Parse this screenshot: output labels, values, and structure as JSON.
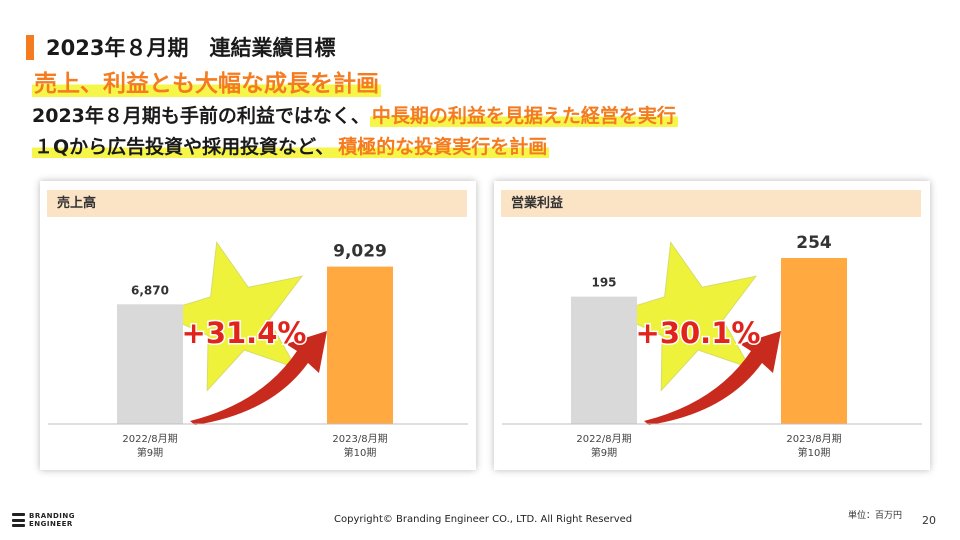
{
  "slide": {
    "title": "2023年８月期　連結業績目標",
    "headline1": "売上、利益とも大幅な成長を計画",
    "headline2_plain": "2023年８月期も手前の利益ではなく、",
    "headline2_emph": "中長期の利益を見据えた経営を実行",
    "headline3_plain": "１Qから広告投資や採用投資など、",
    "headline3_emph": "積極的な投資実行を計画"
  },
  "footer": {
    "logo_text": "BRANDING\nENGINEER",
    "copyright": "Copyright© Branding Engineer CO., LTD. All Right Reserved",
    "unit": "単位：百万円",
    "page_number": "20"
  },
  "colors": {
    "accent": "#f47b20",
    "bar_prev": "#d9d9d9",
    "bar_target": "#ffa940",
    "growth_text": "#e0231b",
    "star": "#eef23a",
    "panel_header": "#fbe3c6"
  },
  "chart_data": [
    {
      "type": "bar",
      "title": "売上高",
      "categories": [
        "2022/8月期\n第9期",
        "2023/8月期\n第10期"
      ],
      "values": [
        6870,
        9029
      ],
      "value_labels": [
        "6,870",
        "9,029"
      ],
      "growth_label": "+31.4%",
      "ylim": [
        0,
        10500
      ]
    },
    {
      "type": "bar",
      "title": "営業利益",
      "categories": [
        "2022/8月期\n第9期",
        "2023/8月期\n第10期"
      ],
      "values": [
        195,
        254
      ],
      "value_labels": [
        "195",
        "254"
      ],
      "growth_label": "+30.1%",
      "ylim": [
        0,
        280
      ]
    }
  ]
}
